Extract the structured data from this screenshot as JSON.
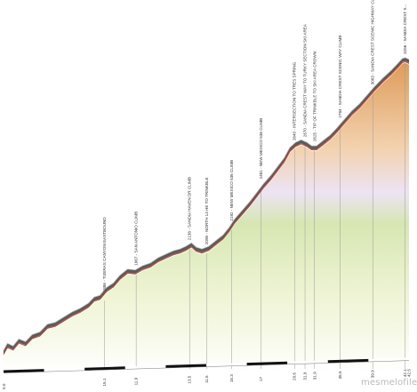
{
  "brand": {
    "text": "mesmelofile"
  },
  "chart_data": {
    "type": "area",
    "title": "",
    "xlabel": "",
    "ylabel": "",
    "xlim": [
      0,
      42.5
    ],
    "ylim": [
      1550,
      3320
    ],
    "profile": [
      [
        0,
        1600
      ],
      [
        0.4,
        1640
      ],
      [
        1.0,
        1625
      ],
      [
        1.6,
        1665
      ],
      [
        2.3,
        1650
      ],
      [
        3.0,
        1690
      ],
      [
        3.8,
        1705
      ],
      [
        4.6,
        1750
      ],
      [
        5.4,
        1760
      ],
      [
        6.3,
        1790
      ],
      [
        7.2,
        1820
      ],
      [
        8.0,
        1840
      ],
      [
        8.9,
        1870
      ],
      [
        9.5,
        1905
      ],
      [
        10.1,
        1915
      ],
      [
        10.8,
        1960
      ],
      [
        11.5,
        1985
      ],
      [
        12.2,
        2030
      ],
      [
        13.0,
        2065
      ],
      [
        13.8,
        2060
      ],
      [
        14.6,
        2085
      ],
      [
        15.4,
        2100
      ],
      [
        16.2,
        2130
      ],
      [
        17.0,
        2150
      ],
      [
        17.8,
        2170
      ],
      [
        18.5,
        2180
      ],
      [
        19.1,
        2195
      ],
      [
        19.7,
        2215
      ],
      [
        20.2,
        2190
      ],
      [
        20.8,
        2180
      ],
      [
        21.5,
        2195
      ],
      [
        22.3,
        2230
      ],
      [
        23.0,
        2260
      ],
      [
        23.6,
        2300
      ],
      [
        24.2,
        2350
      ],
      [
        25.0,
        2400
      ],
      [
        25.8,
        2450
      ],
      [
        26.5,
        2500
      ],
      [
        27.2,
        2550
      ],
      [
        28.0,
        2600
      ],
      [
        28.7,
        2650
      ],
      [
        29.4,
        2700
      ],
      [
        30.0,
        2760
      ],
      [
        30.6,
        2790
      ],
      [
        31.2,
        2805
      ],
      [
        31.8,
        2790
      ],
      [
        32.3,
        2770
      ],
      [
        32.8,
        2770
      ],
      [
        33.5,
        2800
      ],
      [
        34.2,
        2830
      ],
      [
        34.9,
        2870
      ],
      [
        35.7,
        2920
      ],
      [
        36.5,
        2970
      ],
      [
        37.3,
        3010
      ],
      [
        38.1,
        3060
      ],
      [
        38.9,
        3110
      ],
      [
        39.8,
        3160
      ],
      [
        40.6,
        3200
      ],
      [
        41.3,
        3240
      ],
      [
        41.8,
        3270
      ],
      [
        42.1,
        3275
      ],
      [
        42.5,
        3265
      ]
    ],
    "markers": [
      {
        "dist": "15.1",
        "label": "1886 - TIJERAS CANYON EASTBOUND",
        "x": 10.6,
        "y": 1915
      },
      {
        "dist": "11.9",
        "label": "1967 - SAN ANTONIO CLIMB",
        "x": 13.9,
        "y": 2065
      },
      {
        "dist": "13.5",
        "label": "2138 - SANDIA HAVEN DR CLIMB",
        "x": 19.5,
        "y": 2210
      },
      {
        "dist": "11.5",
        "label": "2095 - NORTH 14 HE TO TRINKBLE",
        "x": 21.3,
        "y": 2185
      },
      {
        "dist": "15.3",
        "label": "2192 - NEW MEXICO 536 CLIMB",
        "x": 23.9,
        "y": 2320
      },
      {
        "dist": "17",
        "label": "2481 - NEW MEXICO 536 CLIMB",
        "x": 27.0,
        "y": 2560
      },
      {
        "dist": "20.6",
        "label": "2640 - INTERSECTION TO TRES SPRING",
        "x": 30.5,
        "y": 2780
      },
      {
        "dist": "31.9",
        "label": "2670 - SANDIA CREST WAY TO TURKY SECTION SKI AREA",
        "x": 31.6,
        "y": 2800
      },
      {
        "dist": "31.9",
        "label": "2625 - TIP OF TRINKBLE TO SKI AREA CROWN",
        "x": 32.6,
        "y": 2775
      },
      {
        "dist": "35.5",
        "label": "2784 - SANDIA CREST SCENIC WAY CLIMB",
        "x": 35.3,
        "y": 2910
      },
      {
        "dist": "39.9",
        "label": "3063 - SANDIA CREST SCENIC HIGHWAY CLIMB",
        "x": 38.7,
        "y": 3100
      },
      {
        "dist": "42.1",
        "label": "3256 - SANDIA CREST S...",
        "x": 42.1,
        "y": 3275
      }
    ],
    "start_label": "0.0",
    "end_label": "42.5",
    "legend": "none",
    "grid": false
  }
}
